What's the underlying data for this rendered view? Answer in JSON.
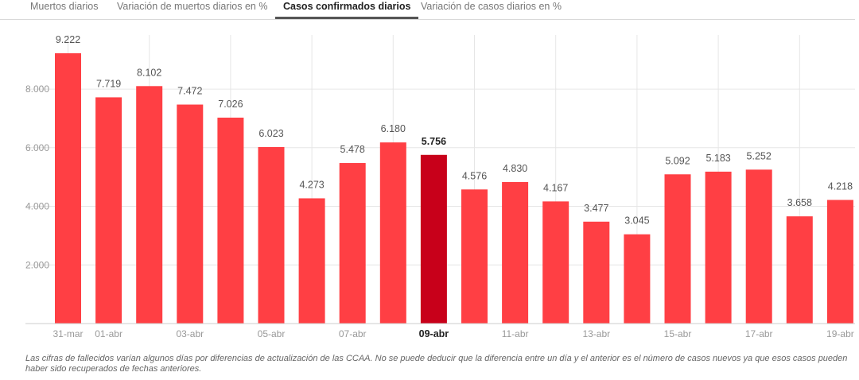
{
  "tabs": [
    {
      "label": "Muertos diarios",
      "active": false
    },
    {
      "label": "Variación de muertos diarios en %",
      "active": false
    },
    {
      "label": "Casos confirmados diarios",
      "active": true
    },
    {
      "label": "Variación de casos diarios en %",
      "active": false
    }
  ],
  "footnote": "Las cifras de fallecidos varían algunos días por diferencias de actualización de las CCAA. No se puede deducir que la diferencia entre un día y el anterior es el número de casos nuevos ya que esos casos pueden haber sido recuperados de fechas anteriores.",
  "colors": {
    "bar": "#ff3f44",
    "bar_highlight": "#c8001a",
    "grid": "#e6e6e6"
  },
  "chart_data": {
    "type": "bar",
    "title": "",
    "xlabel": "",
    "ylabel": "",
    "ylim": [
      0,
      9600
    ],
    "yticks": [
      {
        "value": 2000,
        "label": "2.000"
      },
      {
        "value": 4000,
        "label": "4.000"
      },
      {
        "value": 6000,
        "label": "6.000"
      },
      {
        "value": 8000,
        "label": "8.000"
      }
    ],
    "grid": true,
    "highlight_index": 9,
    "categories": [
      "31-mar",
      "01-abr",
      "02-abr",
      "03-abr",
      "04-abr",
      "05-abr",
      "06-abr",
      "07-abr",
      "08-abr",
      "09-abr",
      "10-abr",
      "11-abr",
      "12-abr",
      "13-abr",
      "14-abr",
      "15-abr",
      "16-abr",
      "17-abr",
      "18-abr",
      "19-abr"
    ],
    "shown_xtick_labels": [
      "31-mar",
      "01-abr",
      "",
      "03-abr",
      "",
      "05-abr",
      "",
      "07-abr",
      "",
      "09-abr",
      "",
      "11-abr",
      "",
      "13-abr",
      "",
      "15-abr",
      "",
      "17-abr",
      "",
      "19-abr"
    ],
    "values": [
      9222,
      7719,
      8102,
      7472,
      7026,
      6023,
      4273,
      5478,
      6180,
      5756,
      4576,
      4830,
      4167,
      3477,
      3045,
      5092,
      5183,
      5252,
      3658,
      4218
    ],
    "value_labels": [
      "9.222",
      "7.719",
      "8.102",
      "7.472",
      "7.026",
      "6.023",
      "4.273",
      "5.478",
      "6.180",
      "5.756",
      "4.576",
      "4.830",
      "4.167",
      "3.477",
      "3.045",
      "5.092",
      "5.183",
      "5.252",
      "3.658",
      "4.218"
    ]
  }
}
